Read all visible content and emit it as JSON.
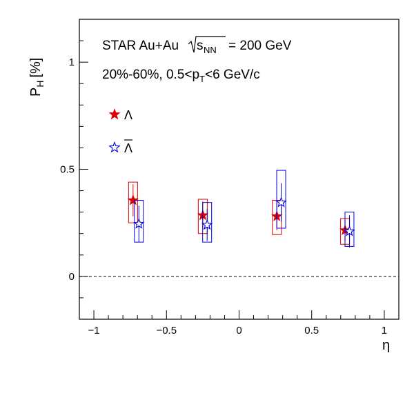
{
  "chart_data": {
    "type": "scatter",
    "title": "",
    "annotations": {
      "line1_prefix": "STAR Au+Au",
      "line1_root": "s",
      "line1_root_sub": "NN",
      "line1_suffix": "= 200 GeV",
      "line2_prefix": "20%-60%, 0.5<p",
      "line2_sub": "T",
      "line2_suffix": "<6 GeV/c"
    },
    "xlabel": "η",
    "ylabel_main": "P",
    "ylabel_sub": "H",
    "ylabel_unit": "[%]",
    "xlim": [
      -1.1,
      1.1
    ],
    "ylim": [
      -0.2,
      1.2
    ],
    "x_ticks": [
      {
        "value": -1,
        "label": "−1"
      },
      {
        "value": -0.5,
        "label": "−0.5"
      },
      {
        "value": 0,
        "label": "0"
      },
      {
        "value": 0.5,
        "label": "0.5"
      },
      {
        "value": 1,
        "label": "1"
      }
    ],
    "y_ticks": [
      {
        "value": 0,
        "label": "0"
      },
      {
        "value": 0.5,
        "label": "0.5"
      },
      {
        "value": 1,
        "label": "1"
      }
    ],
    "reference_line_y": 0,
    "legend_placement": "top-left",
    "series": [
      {
        "name": "Λ",
        "color": "#dd0000",
        "marker": "filled-star",
        "points": [
          {
            "x": -0.73,
            "y": 0.355,
            "stat": 0.075,
            "sys_lo": 0.25,
            "sys_hi": 0.44
          },
          {
            "x": -0.25,
            "y": 0.285,
            "stat": 0.065,
            "sys_lo": 0.2,
            "sys_hi": 0.36
          },
          {
            "x": 0.26,
            "y": 0.28,
            "stat": 0.065,
            "sys_lo": 0.195,
            "sys_hi": 0.355
          },
          {
            "x": 0.73,
            "y": 0.215,
            "stat": 0.05,
            "sys_lo": 0.15,
            "sys_hi": 0.27
          }
        ]
      },
      {
        "name": "Λ",
        "overline": true,
        "color": "#0000dd",
        "marker": "open-star",
        "points": [
          {
            "x": -0.69,
            "y": 0.245,
            "stat": 0.085,
            "sys_lo": 0.16,
            "sys_hi": 0.355
          },
          {
            "x": -0.22,
            "y": 0.24,
            "stat": 0.075,
            "sys_lo": 0.16,
            "sys_hi": 0.345
          },
          {
            "x": 0.29,
            "y": 0.345,
            "stat": 0.09,
            "sys_lo": 0.225,
            "sys_hi": 0.495
          },
          {
            "x": 0.76,
            "y": 0.21,
            "stat": 0.075,
            "sys_lo": 0.14,
            "sys_hi": 0.3
          }
        ]
      }
    ]
  }
}
